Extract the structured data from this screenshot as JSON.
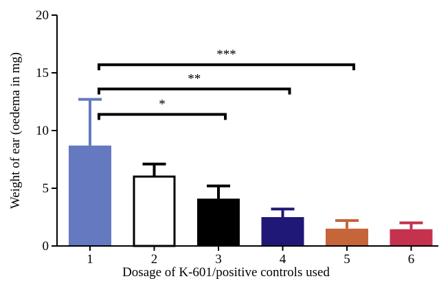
{
  "chart_data": {
    "type": "bar",
    "title": "",
    "xlabel": "Dosage of K-601/positive controls used",
    "ylabel": "Weight of ear (oedema in mg)",
    "ylim": [
      0,
      20
    ],
    "yticks": [
      "0",
      "5",
      "10",
      "15",
      "20"
    ],
    "categories": [
      "1",
      "2",
      "3",
      "4",
      "5",
      "6"
    ],
    "values": [
      8.7,
      6.1,
      4.1,
      2.5,
      1.5,
      1.45
    ],
    "errors": [
      4.0,
      1.0,
      1.1,
      0.7,
      0.7,
      0.55
    ],
    "bar_fill_colors": [
      "#6479c0",
      "#ffffff",
      "#000000",
      "#1f1877",
      "#c6643a",
      "#c4324d"
    ],
    "bar_stroke_colors": [
      "#6479c0",
      "#000000",
      "#000000",
      "#1f1877",
      "#c6643a",
      "#c4324d"
    ],
    "significance": [
      {
        "from": "1",
        "to": "3",
        "y": 11.4,
        "label": "*"
      },
      {
        "from": "1",
        "to": "4",
        "y": 13.6,
        "label": "**"
      },
      {
        "from": "1",
        "to": "5",
        "y": 15.7,
        "label": "***"
      }
    ]
  }
}
